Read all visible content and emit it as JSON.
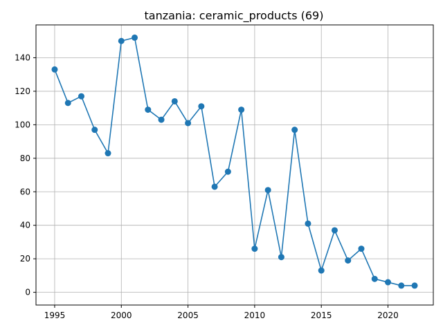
{
  "chart_data": {
    "type": "line",
    "title": "tanzania: ceramic_products (69)",
    "xlabel": "",
    "ylabel": "",
    "xlim": [
      1993.6,
      2023.4
    ],
    "ylim": [
      -7.6,
      159.6
    ],
    "grid": true,
    "x_ticks": [
      1995,
      2000,
      2005,
      2010,
      2015,
      2020
    ],
    "y_ticks": [
      0,
      20,
      40,
      60,
      80,
      100,
      120,
      140
    ],
    "series": [
      {
        "color": "#1f77b4",
        "marker": "circle",
        "x": [
          1995,
          1996,
          1997,
          1998,
          1999,
          2000,
          2001,
          2002,
          2003,
          2004,
          2005,
          2006,
          2007,
          2008,
          2009,
          2010,
          2011,
          2012,
          2013,
          2014,
          2015,
          2016,
          2017,
          2018,
          2019,
          2020,
          2021,
          2022
        ],
        "y": [
          133,
          113,
          117,
          97,
          83,
          150,
          152,
          109,
          103,
          114,
          101,
          111,
          63,
          72,
          109,
          26,
          61,
          21,
          97,
          41,
          13,
          37,
          19,
          26,
          8,
          6,
          4,
          4
        ]
      }
    ]
  }
}
